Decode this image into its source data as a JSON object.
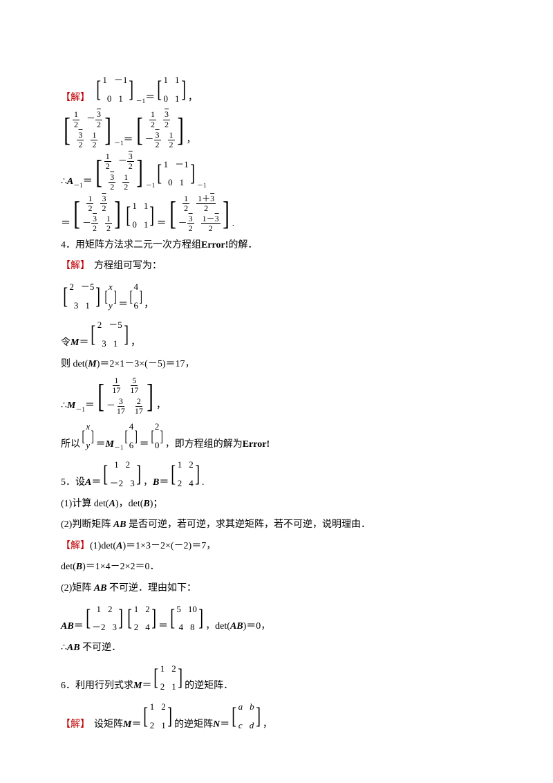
{
  "labels": {
    "solve": "【解】",
    "error": "Error!"
  },
  "colors": {
    "solve_color": "#c00000",
    "text_color": "#000000",
    "background": "#ffffff"
  },
  "typography": {
    "body_fontsize": 14,
    "line_height": 1.9,
    "font_serif": "SimSun",
    "font_math": "Times New Roman"
  },
  "content": {
    "block1": {
      "eq1": {
        "left_matrix": [
          [
            "1",
            "－1"
          ],
          [
            "0",
            "1"
          ]
        ],
        "left_exp": "－1",
        "right_matrix": [
          [
            "1",
            "1"
          ],
          [
            "0",
            "1"
          ]
        ],
        "tail": "，"
      },
      "eq2": {
        "left_matrix": [
          [
            "1/2",
            "－√3/2"
          ],
          [
            "√3/2",
            "1/2"
          ]
        ],
        "left_exp": "－1",
        "right_matrix": [
          [
            "1/2",
            "√3/2"
          ],
          [
            "－√3/2",
            "1/2"
          ]
        ],
        "tail": "，"
      },
      "eq3": {
        "lead": "∴",
        "var": "A",
        "var_exp": "－1",
        "eq": "＝",
        "m1": [
          [
            "1/2",
            "－√3/2"
          ],
          [
            "√3/2",
            "1/2"
          ]
        ],
        "m1_exp": "－1",
        "m2": [
          [
            "1",
            "－1"
          ],
          [
            "0",
            "1"
          ]
        ],
        "m2_exp": "－1"
      },
      "eq4": {
        "lead": "＝",
        "m1": [
          [
            "1/2",
            "√3/2"
          ],
          [
            "－√3/2",
            "1/2"
          ]
        ],
        "m2": [
          [
            "1",
            "1"
          ],
          [
            "0",
            "1"
          ]
        ],
        "eq": "＝",
        "m3": [
          [
            "1/2",
            "(1+√3)/2"
          ],
          [
            "－√3/2",
            "(1−√3)/2"
          ]
        ],
        "tail": "."
      }
    },
    "q4": {
      "title_pre": "4．用矩阵方法求二元一次方程组",
      "title_post": "的解．",
      "s1": "方程组可写为：",
      "eq1": {
        "m1": [
          [
            "2",
            "－5"
          ],
          [
            "3",
            "1"
          ]
        ],
        "v1": [
          [
            "x"
          ],
          [
            "y"
          ]
        ],
        "eq": "＝",
        "v2": [
          [
            "4"
          ],
          [
            "6"
          ]
        ],
        "tail": "，"
      },
      "let_pre": "令 ",
      "let_var": "M",
      "let_eq": "＝",
      "let_m": [
        [
          "2",
          "－5"
        ],
        [
          "3",
          "1"
        ]
      ],
      "let_tail": "，",
      "det_line": "则 det(M)＝2×1－3×(－5)＝17，",
      "minv": {
        "lead": "∴",
        "var": "M",
        "exp": "－1",
        "eq": "＝",
        "m": [
          [
            "1/17",
            "5/17"
          ],
          [
            "－3/17",
            "2/17"
          ]
        ],
        "tail": "，"
      },
      "soln_pre": "所以 ",
      "soln_v1": [
        [
          "x"
        ],
        [
          "y"
        ]
      ],
      "soln_eq1": "＝",
      "soln_var": "M",
      "soln_exp": "－1",
      "soln_v2": [
        [
          "4"
        ],
        [
          "6"
        ]
      ],
      "soln_eq2": "＝",
      "soln_v3": [
        [
          "2"
        ],
        [
          "0"
        ]
      ],
      "soln_post": "，即方程组的解为"
    },
    "q5": {
      "title_pre": "5．设 ",
      "varA": "A",
      "eqA": "＝",
      "mA": [
        [
          "1",
          "2"
        ],
        [
          "－2",
          "3"
        ]
      ],
      "sep": "，",
      "varB": "B",
      "eqB": "＝",
      "mB": [
        [
          "1",
          "2"
        ],
        [
          "2",
          "4"
        ]
      ],
      "tail": ".",
      "p1": "(1)计算 det(A)，det(B)；",
      "p2": "(2)判断矩阵 AB 是否可逆，若可逆，求其逆矩阵，若不可逆，说明理由．",
      "s1": "(1)det(A)＝1×3－2×(－2)＝7，",
      "s2": "det(B)＝1×4－2×2＝0．",
      "s3": "(2)矩阵 AB 不可逆．理由如下：",
      "ab": {
        "var": "AB",
        "eq": "＝",
        "m1": [
          [
            "1",
            "2"
          ],
          [
            "－2",
            "3"
          ]
        ],
        "m2": [
          [
            "1",
            "2"
          ],
          [
            "2",
            "4"
          ]
        ],
        "eq2": "＝",
        "m3": [
          [
            "5",
            "10"
          ],
          [
            "4",
            "8"
          ]
        ],
        "tail": "，det(AB)＝0，"
      },
      "s4": "∴AB 不可逆．"
    },
    "q6": {
      "title_pre": "6．利用行列式求 ",
      "var": "M",
      "eq": "＝",
      "m": [
        [
          "1",
          "2"
        ],
        [
          "2",
          "1"
        ]
      ],
      "title_post": "的逆矩阵．",
      "s1_pre": "设矩阵 ",
      "s1_var": "M",
      "s1_eq": "＝",
      "s1_m": [
        [
          "1",
          "2"
        ],
        [
          "2",
          "1"
        ]
      ],
      "s1_mid": "的逆矩阵 ",
      "s1_varN": "N",
      "s1_eqN": "＝",
      "s1_mN": [
        [
          "a",
          "b"
        ],
        [
          "c",
          "d"
        ]
      ],
      "s1_tail": "，"
    }
  }
}
